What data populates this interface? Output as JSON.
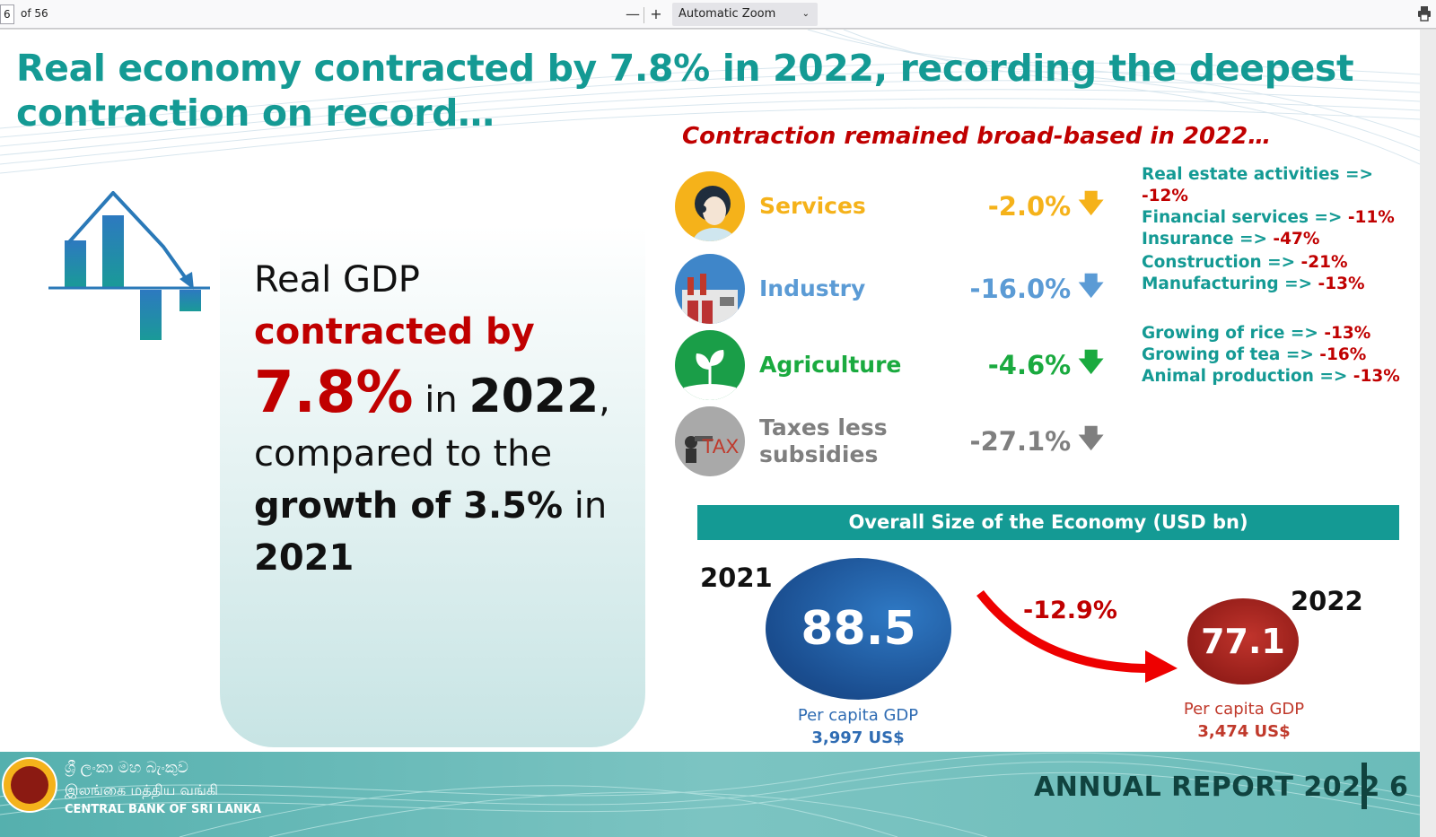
{
  "toolbar": {
    "page_input": "6",
    "page_count": "of 56",
    "zoom_out": "—",
    "zoom_in": "+",
    "zoom_select": "Automatic Zoom"
  },
  "slide": {
    "title": "Real economy contracted by 7.8% in 2022, recording the deepest contraction on record…",
    "subtitle": "Contraction remained broad-based in 2022…",
    "left": {
      "line1": "Real GDP",
      "line2": "contracted by",
      "pct": "7.8%",
      "in": " in ",
      "year": "2022",
      "comma": ",",
      "line4": "compared to the",
      "growth": "growth of 3.5%",
      "in2": " in",
      "year2": "2021"
    },
    "sectors": [
      {
        "name": "Services",
        "value": "-2.0%",
        "color": "#f5b21a",
        "details": [
          [
            "Real estate activities => ",
            "-12%"
          ],
          [
            "Financial services => ",
            "-11%"
          ],
          [
            "Insurance => ",
            "-47%"
          ]
        ]
      },
      {
        "name": "Industry",
        "value": "-16.0%",
        "color": "#5b9bd5",
        "details": [
          [
            "Construction => ",
            "-21%"
          ],
          [
            "Manufacturing => ",
            "-13%"
          ]
        ]
      },
      {
        "name": "Agriculture",
        "value": "-4.6%",
        "color": "#1aaa3f",
        "details": [
          [
            "Growing of rice => ",
            "-13%"
          ],
          [
            "Growing of tea => ",
            "-16%"
          ],
          [
            "Animal production => ",
            "-13%"
          ]
        ]
      },
      {
        "name": "Taxes less subsidies",
        "value": "-27.1%",
        "color": "#7f7f7f",
        "details": []
      }
    ],
    "economy": {
      "heading": "Overall Size of the Economy (USD bn)",
      "year_2021": "2021",
      "year_2022": "2022",
      "value_2021": "88.5",
      "value_2022": "77.1",
      "change": "-12.9%",
      "per_capita_label": "Per capita GDP",
      "per_capita_2021": "3,997 US$",
      "per_capita_2022": "3,474 US$"
    },
    "footer": {
      "sinhala": "ශ්‍රී ලංකා මහ බැංකුව",
      "tamil": "இலங்கை மத்திய வங்கி",
      "english": "CENTRAL BANK OF SRI LANKA",
      "annual_report": "ANNUAL REPORT 2022",
      "page": "6"
    }
  }
}
